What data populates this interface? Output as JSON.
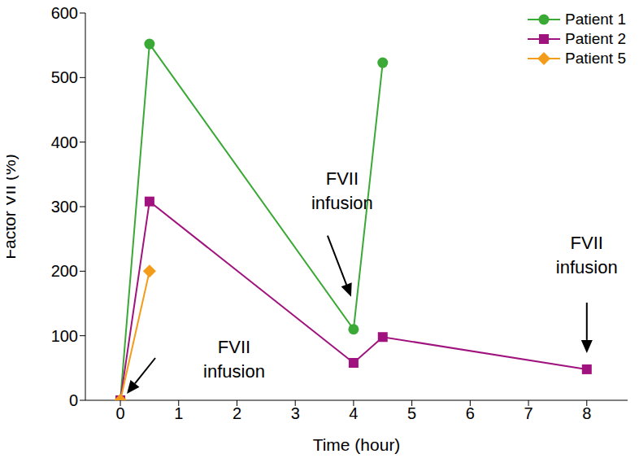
{
  "chart_data": {
    "type": "line",
    "x_label": "Time (hour)",
    "y_label": "Factor VII (%)",
    "xlim": [
      -0.6,
      8.7
    ],
    "xticks": [
      0,
      1,
      2,
      3,
      4,
      5,
      6,
      7,
      8
    ],
    "ylim": [
      0,
      600
    ],
    "yticks": [
      0,
      100,
      200,
      300,
      400,
      500,
      600
    ],
    "grid": false,
    "legend": "upper right",
    "series": [
      {
        "name": "Patient 1",
        "color": "#3aa935",
        "marker": "circle",
        "line_style": "solid",
        "x": [
          0,
          0.5,
          4,
          4.5
        ],
        "values": [
          0,
          552,
          110,
          523
        ]
      },
      {
        "name": "Patient 2",
        "color": "#a0137e",
        "marker": "square",
        "line_style": "solid",
        "x": [
          0,
          0.5,
          4,
          4.5,
          8
        ],
        "values": [
          0,
          308,
          58,
          98,
          48
        ]
      },
      {
        "name": "Patient 5",
        "color": "#f39c1a",
        "marker": "diamond",
        "line_style": "solid",
        "x": [
          0,
          0.5
        ],
        "values": [
          0,
          200
        ]
      }
    ],
    "annotations": [
      {
        "text": "FVII infusion",
        "x": 0,
        "y": 0
      },
      {
        "text": "FVII infusion",
        "x": 4,
        "y": 110
      },
      {
        "text": "FVII infusion",
        "x": 8,
        "y": 48
      }
    ]
  }
}
